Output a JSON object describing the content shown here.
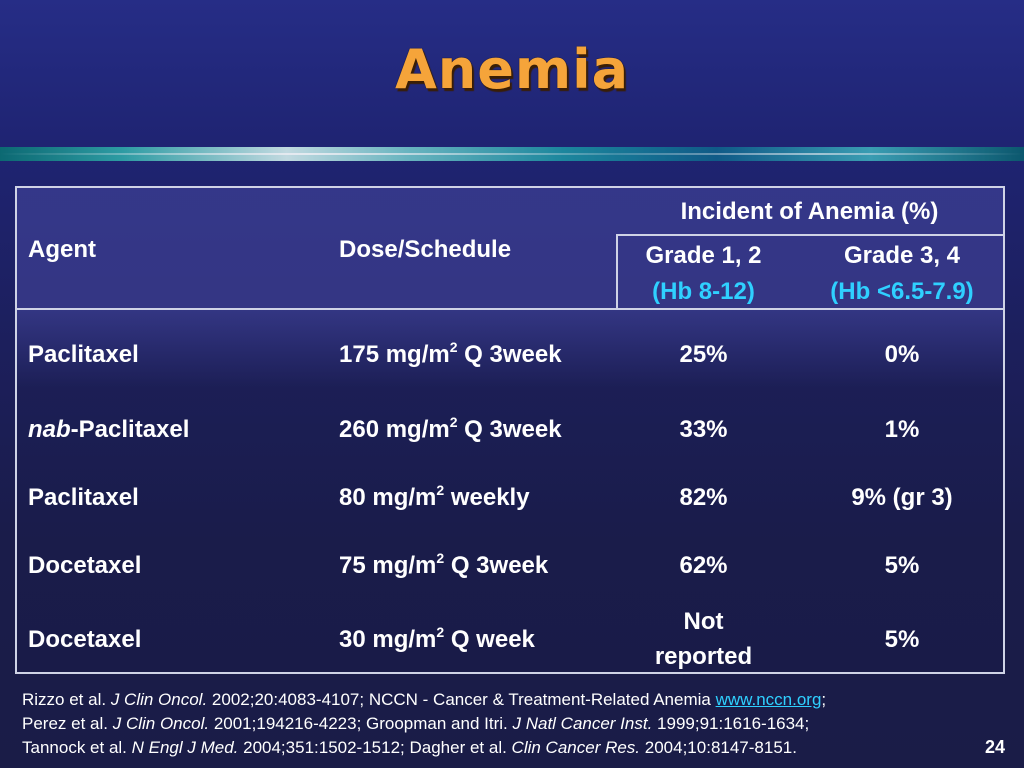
{
  "slide": {
    "title": "Anemia",
    "page_number": "24"
  },
  "table": {
    "header": {
      "agent": "Agent",
      "dose": "Dose/Schedule",
      "group": "Incident of Anemia (%)",
      "grade12_label": "Grade 1, 2",
      "grade12_sub": "(Hb 8-12)",
      "grade34_label": "Grade 3, 4",
      "grade34_sub": "(Hb <6.5-7.9)"
    },
    "rows": [
      {
        "agent_prefix": "",
        "agent": "Paclitaxel",
        "dose_a": "175 mg/m",
        "dose_sup": "2",
        "dose_b": " Q 3week",
        "g12": "25%",
        "g12_b": "",
        "g34": "0%"
      },
      {
        "agent_prefix": "nab",
        "agent": "-Paclitaxel",
        "dose_a": "260 mg/m",
        "dose_sup": "2",
        "dose_b": " Q 3week",
        "g12": "33%",
        "g12_b": "",
        "g34": "1%"
      },
      {
        "agent_prefix": "",
        "agent": "Paclitaxel",
        "dose_a": "80 mg/m",
        "dose_sup": "2",
        "dose_b": " weekly",
        "g12": "82%",
        "g12_b": "",
        "g34": "9% (gr 3)"
      },
      {
        "agent_prefix": "",
        "agent": "Docetaxel",
        "dose_a": "75 mg/m",
        "dose_sup": "2",
        "dose_b": " Q 3week",
        "g12": "62%",
        "g12_b": "",
        "g34": "5%"
      },
      {
        "agent_prefix": "",
        "agent": "Docetaxel",
        "dose_a": "30 mg/m",
        "dose_sup": "2",
        "dose_b": " Q week",
        "g12": "Not",
        "g12_b": "reported",
        "g34": "5%"
      }
    ]
  },
  "footer": {
    "l1_a": "Rizzo et al. ",
    "l1_j": "J Clin Oncol.",
    "l1_b": " 2002;20:4083-4107; NCCN - Cancer & Treatment-Related Anemia  ",
    "l1_link": "www.nccn.org",
    "l1_c": ";",
    "l2_a": "Perez et al. ",
    "l2_j": "J Clin Oncol.",
    "l2_b": " 2001;194216-4223; Groopman and Itri. ",
    "l2_j2": "J Natl Cancer Inst.",
    "l2_c": " 1999;91:1616-1634;",
    "l3_a": "Tannock et al. ",
    "l3_j": "N Engl J Med.",
    "l3_b": " 2004;351:1502-1512; Dagher et al. ",
    "l3_j2": "Clin Cancer Res.",
    "l3_c": " 2004;10:8147-8151."
  }
}
